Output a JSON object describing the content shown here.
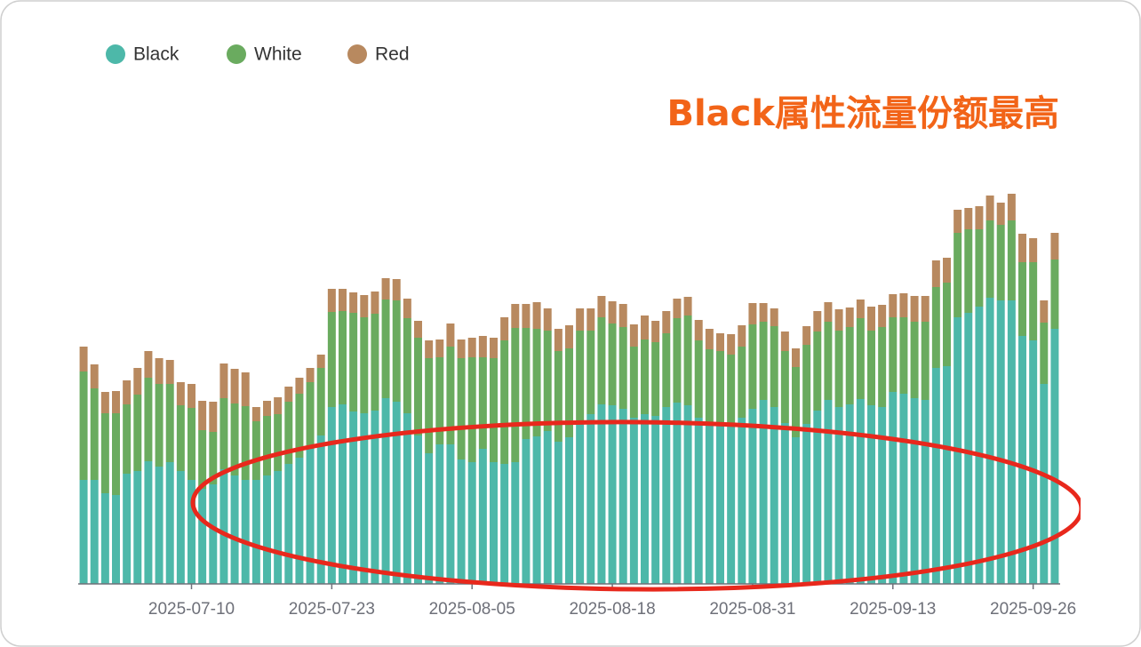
{
  "chart_data": {
    "type": "stacked-bar",
    "annotation": "Black属性流量份额最高",
    "categories": [
      null,
      null,
      null,
      null,
      null,
      null,
      null,
      null,
      null,
      null,
      "2025-07-10",
      null,
      null,
      null,
      null,
      null,
      null,
      null,
      null,
      null,
      null,
      null,
      null,
      "2025-07-23",
      null,
      null,
      null,
      null,
      null,
      null,
      null,
      null,
      null,
      null,
      null,
      null,
      "2025-08-05",
      null,
      null,
      null,
      null,
      null,
      null,
      null,
      null,
      null,
      null,
      null,
      null,
      "2025-08-18",
      null,
      null,
      null,
      null,
      null,
      null,
      null,
      null,
      null,
      null,
      null,
      null,
      "2025-08-31",
      null,
      null,
      null,
      null,
      null,
      null,
      null,
      null,
      null,
      null,
      null,
      null,
      "2025-09-13",
      null,
      null,
      null,
      null,
      null,
      null,
      null,
      null,
      null,
      null,
      null,
      null,
      "2025-09-26",
      null,
      null
    ],
    "series": [
      {
        "name": "Black",
        "color": "#4db8a9",
        "values": [
          117,
          117,
          102,
          100,
          124,
          127,
          138,
          132,
          137,
          127,
          117,
          107,
          112,
          129,
          122,
          117,
          117,
          122,
          127,
          135,
          142,
          152,
          167,
          199,
          202,
          194,
          192,
          195,
          209,
          205,
          192,
          167,
          147,
          157,
          157,
          140,
          137,
          152,
          137,
          135,
          137,
          163,
          166,
          172,
          160,
          165,
          182,
          191,
          202,
          201,
          197,
          187,
          191,
          189,
          199,
          204,
          201,
          187,
          182,
          179,
          177,
          187,
          197,
          207,
          199,
          181,
          165,
          180,
          195,
          207,
          199,
          202,
          208,
          201,
          199,
          216,
          214,
          209,
          207,
          243,
          245,
          300,
          305,
          312,
          322,
          319,
          319,
          279,
          274,
          225,
          287
        ]
      },
      {
        "name": "White",
        "color": "#6aab5f",
        "values": [
          122,
          103,
          90,
          92,
          78,
          86,
          94,
          93,
          88,
          74,
          81,
          66,
          59,
          80,
          81,
          83,
          66,
          67,
          64,
          70,
          72,
          75,
          76,
          107,
          105,
          111,
          108,
          109,
          111,
          114,
          107,
          110,
          107,
          98,
          110,
          114,
          118,
          103,
          117,
          139,
          151,
          125,
          121,
          113,
          102,
          100,
          103,
          94,
          98,
          92,
          92,
          80,
          84,
          83,
          83,
          95,
          101,
          87,
          82,
          83,
          81,
          80,
          95,
          88,
          91,
          81,
          79,
          89,
          89,
          88,
          86,
          87,
          91,
          84,
          90,
          84,
          86,
          86,
          88,
          91,
          94,
          95,
          94,
          87,
          87,
          85,
          90,
          83,
          88,
          69,
          78
        ]
      },
      {
        "name": "Red",
        "color": "#b8895f",
        "values": [
          28,
          27,
          24,
          25,
          27,
          30,
          30,
          29,
          27,
          26,
          27,
          33,
          34,
          39,
          39,
          38,
          16,
          17,
          19,
          17,
          18,
          16,
          15,
          26,
          25,
          23,
          25,
          25,
          24,
          24,
          22,
          19,
          20,
          20,
          26,
          21,
          22,
          24,
          23,
          26,
          27,
          27,
          30,
          25,
          25,
          26,
          25,
          25,
          24,
          25,
          26,
          25,
          27,
          24,
          25,
          22,
          21,
          23,
          23,
          20,
          23,
          24,
          24,
          21,
          20,
          22,
          21,
          21,
          23,
          22,
          24,
          22,
          21,
          27,
          25,
          26,
          27,
          29,
          29,
          30,
          28,
          26,
          24,
          26,
          28,
          25,
          30,
          32,
          27,
          25,
          30
        ]
      }
    ],
    "ylim": [
      0,
      457
    ],
    "legend": "top-left"
  }
}
